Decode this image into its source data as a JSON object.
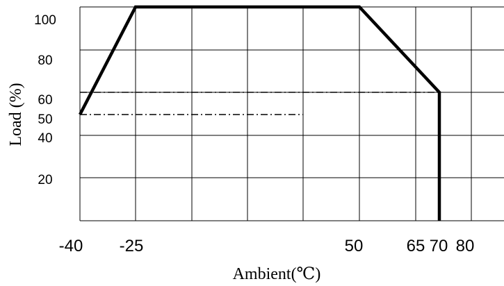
{
  "chart_data": {
    "type": "line",
    "title": "",
    "xlabel": "Ambient(℃)",
    "ylabel": "Load (%)",
    "x_ticks": [
      "-40",
      "-25",
      "50",
      "65",
      "70",
      "80"
    ],
    "y_ticks": [
      "100",
      "80",
      "60",
      "50",
      "40",
      "20"
    ],
    "grid": true,
    "series": [
      {
        "style": "solid-thick",
        "x": [
          -40,
          -25,
          50,
          70,
          70
        ],
        "y": [
          50,
          100,
          100,
          60,
          0
        ]
      }
    ],
    "reference_lines": [
      {
        "style": "dash-dot",
        "y": 60,
        "x_from": -40,
        "x_to": 70
      },
      {
        "style": "dash-dot",
        "y": 50,
        "x_from": -40,
        "x_to": 35
      }
    ],
    "colors": {
      "line": "#000000",
      "grid": "#000000"
    }
  }
}
